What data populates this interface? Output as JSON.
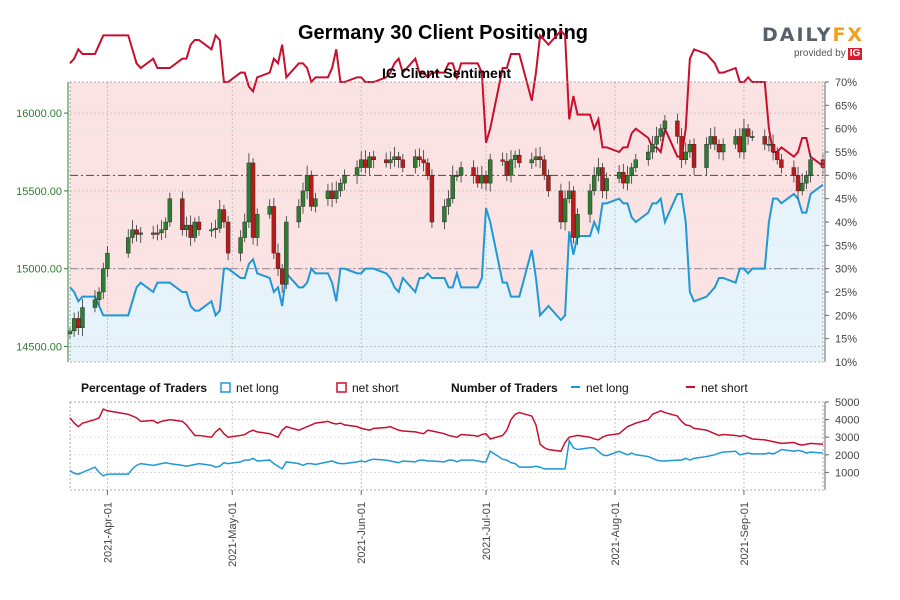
{
  "header": {
    "title": "Germany 30 Client Positioning",
    "logo": {
      "word_left": "DAILY",
      "word_right": "FX",
      "sub": "provided by",
      "badge": "IG"
    }
  },
  "colors": {
    "net_long": "#1f98d6",
    "net_short": "#c8102e",
    "short_fill": "#fbe3e4",
    "long_fill": "#e6f3fb",
    "candle_up": "#2e7d32",
    "candle_down": "#b71c1c",
    "price_axis": "#2e7d32",
    "grid": "#b8b8b8"
  },
  "chart_data": {
    "type": "line",
    "title": "IG Client Sentiment",
    "dates": [
      "2021-03-23",
      "2021-03-24",
      "2021-03-25",
      "2021-03-26",
      "2021-03-29",
      "2021-03-30",
      "2021-03-31",
      "2021-04-01",
      "2021-04-06",
      "2021-04-07",
      "2021-04-08",
      "2021-04-09",
      "2021-04-12",
      "2021-04-13",
      "2021-04-14",
      "2021-04-15",
      "2021-04-16",
      "2021-04-19",
      "2021-04-20",
      "2021-04-21",
      "2021-04-22",
      "2021-04-23",
      "2021-04-26",
      "2021-04-27",
      "2021-04-28",
      "2021-04-29",
      "2021-04-30",
      "2021-05-03",
      "2021-05-04",
      "2021-05-05",
      "2021-05-06",
      "2021-05-07",
      "2021-05-10",
      "2021-05-11",
      "2021-05-12",
      "2021-05-13",
      "2021-05-14",
      "2021-05-17",
      "2021-05-18",
      "2021-05-19",
      "2021-05-20",
      "2021-05-21",
      "2021-05-24",
      "2021-05-25",
      "2021-05-26",
      "2021-05-27",
      "2021-05-28",
      "2021-05-31",
      "2021-06-01",
      "2021-06-02",
      "2021-06-03",
      "2021-06-04",
      "2021-06-07",
      "2021-06-08",
      "2021-06-09",
      "2021-06-10",
      "2021-06-11",
      "2021-06-14",
      "2021-06-15",
      "2021-06-16",
      "2021-06-17",
      "2021-06-18",
      "2021-06-21",
      "2021-06-22",
      "2021-06-23",
      "2021-06-24",
      "2021-06-25",
      "2021-06-28",
      "2021-06-29",
      "2021-06-30",
      "2021-07-01",
      "2021-07-02",
      "2021-07-05",
      "2021-07-06",
      "2021-07-07",
      "2021-07-08",
      "2021-07-09",
      "2021-07-12",
      "2021-07-13",
      "2021-07-14",
      "2021-07-15",
      "2021-07-16",
      "2021-07-19",
      "2021-07-20",
      "2021-07-21",
      "2021-07-22",
      "2021-07-23",
      "2021-07-26",
      "2021-07-27",
      "2021-07-28",
      "2021-07-29",
      "2021-07-30",
      "2021-08-02",
      "2021-08-03",
      "2021-08-04",
      "2021-08-05",
      "2021-08-06",
      "2021-08-09",
      "2021-08-10",
      "2021-08-11",
      "2021-08-12",
      "2021-08-13",
      "2021-08-16",
      "2021-08-17",
      "2021-08-18",
      "2021-08-19",
      "2021-08-20",
      "2021-08-23",
      "2021-08-24",
      "2021-08-25",
      "2021-08-26",
      "2021-08-27",
      "2021-08-30",
      "2021-08-31",
      "2021-09-01",
      "2021-09-02",
      "2021-09-03",
      "2021-09-06",
      "2021-09-07",
      "2021-09-08",
      "2021-09-09",
      "2021-09-10",
      "2021-09-13",
      "2021-09-14",
      "2021-09-15",
      "2021-09-16",
      "2021-09-17",
      "2021-09-20"
    ],
    "price": {
      "close": [
        14600,
        14680,
        14620,
        14750,
        14800,
        14850,
        15000,
        15100,
        15200,
        15250,
        15220,
        15230,
        15220,
        15230,
        15250,
        15300,
        15450,
        15250,
        15280,
        15200,
        15300,
        15250,
        15250,
        15260,
        15380,
        15300,
        15100,
        15200,
        15300,
        15680,
        15200,
        15350,
        15400,
        15100,
        15000,
        14900,
        15300,
        15400,
        15500,
        15600,
        15400,
        15450,
        15500,
        15450,
        15500,
        15550,
        15600,
        15650,
        15700,
        15650,
        15720,
        15700,
        15680,
        15700,
        15720,
        15700,
        15650,
        15720,
        15700,
        15680,
        15600,
        15300,
        15400,
        15450,
        15600,
        15600,
        15650,
        15600,
        15550,
        15600,
        15550,
        15700,
        15690,
        15600,
        15700,
        15730,
        15680,
        15700,
        15720,
        15700,
        15600,
        15500,
        15300,
        15450,
        15500,
        15200,
        15350,
        15500,
        15600,
        15650,
        15500,
        15580,
        15620,
        15550,
        15600,
        15650,
        15700,
        15750,
        15800,
        15850,
        15900,
        15950,
        15850,
        15700,
        15750,
        15800,
        15650,
        15800,
        15850,
        15800,
        15750,
        15800,
        15850,
        15750,
        15900,
        15850,
        15850,
        15800,
        15800,
        15750,
        15700,
        15650,
        15600,
        15500,
        15550,
        15600,
        15700,
        15650
      ],
      "ylim": [
        14400,
        16200
      ],
      "ticks": [
        14500,
        15000,
        15500,
        16000
      ],
      "tick_labels": [
        "14500.00",
        "15000.00",
        "15500.00",
        "16000.00"
      ]
    },
    "sentiment": {
      "ylim": [
        10,
        70
      ],
      "ticks": [
        15,
        20,
        25,
        30,
        35,
        40,
        45,
        50,
        55,
        60,
        65,
        70
      ],
      "tick_labels": [
        "15%",
        "20%",
        "25%",
        "30%",
        "35%",
        "40%",
        "45%",
        "50%",
        "55%",
        "60%",
        "65%",
        "70%"
      ],
      "reference_lines": [
        50,
        30
      ],
      "net_short_pct": [
        74,
        75,
        77,
        76,
        76,
        78,
        80,
        80,
        80,
        77,
        74,
        73,
        75,
        73,
        73,
        73,
        73,
        75,
        75,
        78,
        79,
        79,
        77,
        80,
        79,
        70,
        70,
        72,
        72,
        69,
        68,
        71,
        72,
        75,
        74,
        78,
        71,
        74,
        74,
        73,
        70,
        71,
        71,
        73,
        77,
        70,
        70,
        71,
        71,
        70,
        70,
        70,
        71,
        72,
        74,
        75,
        72,
        75,
        72,
        72,
        71,
        72,
        72,
        74,
        74,
        71,
        74,
        74,
        74,
        72,
        57,
        60,
        73,
        73,
        76,
        76,
        76,
        66,
        72,
        80,
        79,
        78,
        81,
        80,
        62,
        67,
        63,
        63,
        60,
        62,
        56,
        56,
        55,
        56,
        56,
        59,
        60,
        58,
        56,
        56,
        55,
        60,
        54,
        54,
        60,
        75,
        77,
        76,
        75,
        74,
        72,
        72,
        73,
        70,
        70,
        71,
        70,
        70,
        60,
        55,
        55,
        56,
        54,
        55,
        58,
        58,
        54,
        52
      ],
      "net_long_pct": [
        26,
        25,
        23,
        24,
        24,
        22,
        20,
        20,
        20,
        23,
        26,
        27,
        25,
        27,
        27,
        27,
        27,
        25,
        25,
        22,
        21,
        21,
        23,
        20,
        21,
        30,
        30,
        28,
        28,
        31,
        32,
        29,
        28,
        25,
        26,
        22,
        29,
        26,
        26,
        27,
        30,
        29,
        29,
        27,
        23,
        30,
        30,
        29,
        29,
        30,
        30,
        30,
        29,
        28,
        26,
        25,
        28,
        25,
        28,
        28,
        29,
        28,
        28,
        26,
        26,
        29,
        26,
        26,
        26,
        28,
        43,
        40,
        27,
        27,
        24,
        24,
        24,
        34,
        28,
        20,
        21,
        22,
        19,
        20,
        38,
        33,
        37,
        37,
        40,
        38,
        44,
        44,
        45,
        44,
        44,
        41,
        40,
        42,
        44,
        44,
        45,
        40,
        46,
        46,
        40,
        25,
        23,
        24,
        25,
        26,
        28,
        28,
        27,
        30,
        30,
        29,
        30,
        30,
        40,
        45,
        45,
        44,
        46,
        45,
        42,
        42,
        46,
        48
      ]
    },
    "traders": {
      "title": "Number of Traders",
      "ylim": [
        0,
        5000
      ],
      "ticks": [
        1000,
        2000,
        3000,
        4000,
        5000
      ],
      "tick_labels": [
        "1000",
        "2000",
        "3000",
        "4000",
        "5000"
      ],
      "net_long": [
        1100,
        950,
        900,
        1000,
        1300,
        1000,
        800,
        900,
        900,
        1200,
        1400,
        1500,
        1400,
        1450,
        1500,
        1550,
        1500,
        1400,
        1350,
        1400,
        1450,
        1500,
        1400,
        1300,
        1350,
        1550,
        1500,
        1600,
        1700,
        1700,
        1800,
        1650,
        1700,
        1500,
        1350,
        1200,
        1600,
        1500,
        1400,
        1500,
        1500,
        1450,
        1600,
        1650,
        1550,
        1500,
        1500,
        1600,
        1650,
        1600,
        1700,
        1750,
        1700,
        1650,
        1600,
        1550,
        1650,
        1600,
        1700,
        1700,
        1650,
        1650,
        1600,
        1700,
        1700,
        1600,
        1700,
        1700,
        1650,
        1600,
        1600,
        2200,
        1750,
        1700,
        1550,
        1500,
        1300,
        1300,
        1350,
        1300,
        1200,
        1200,
        1200,
        1200,
        2800,
        2400,
        2300,
        2400,
        2400,
        2200,
        2000,
        1950,
        2200,
        2100,
        2000,
        2100,
        2000,
        1900,
        1800,
        1700,
        1650,
        1650,
        1700,
        1700,
        1800,
        1700,
        1800,
        1900,
        1950,
        2000,
        2100,
        2150,
        2200,
        2000,
        2050,
        2100,
        2050,
        2050,
        2100,
        2050,
        2150,
        2300,
        2200,
        2250,
        2200,
        2100,
        2150,
        2100
      ],
      "net_short": [
        4100,
        3800,
        3600,
        3800,
        4000,
        4100,
        4600,
        4500,
        4300,
        4200,
        4100,
        3900,
        3950,
        3800,
        3900,
        3950,
        4000,
        3900,
        3700,
        3400,
        3100,
        3100,
        3000,
        3300,
        3500,
        3200,
        3000,
        3100,
        3150,
        3300,
        3400,
        3300,
        3200,
        3100,
        3000,
        3400,
        3600,
        3400,
        3500,
        3600,
        3700,
        3800,
        3900,
        3800,
        3750,
        3800,
        3700,
        3600,
        3500,
        3450,
        3400,
        3500,
        3550,
        3600,
        3500,
        3400,
        3350,
        3300,
        3250,
        3200,
        3400,
        3350,
        3200,
        3100,
        3050,
        3000,
        3150,
        3100,
        3050,
        3150,
        3200,
        2900,
        3100,
        3400,
        4000,
        4300,
        4400,
        4200,
        3700,
        2600,
        2400,
        2300,
        2200,
        2700,
        3000,
        3050,
        3100,
        3000,
        2900,
        2850,
        3000,
        3100,
        3200,
        3400,
        3600,
        3700,
        3800,
        4000,
        4300,
        4400,
        4500,
        4400,
        4200,
        3900,
        3700,
        3650,
        3500,
        3400,
        3300,
        3200,
        3100,
        3150,
        3100,
        3050,
        3100,
        3000,
        2900,
        2850,
        2800,
        2750,
        2700,
        2650,
        2700,
        2600,
        2550,
        2600,
        2650,
        2600
      ]
    },
    "x_tick_labels": [
      "2021-Apr-01",
      "2021-May-01",
      "2021-Jun-01",
      "2021-Jul-01",
      "2021-Aug-01",
      "2021-Sep-01"
    ],
    "x_tick_dates": [
      "2021-04-01",
      "2021-05-01",
      "2021-06-01",
      "2021-07-01",
      "2021-08-01",
      "2021-09-01"
    ],
    "legend": {
      "pct_title": "Percentage of Traders",
      "long_label": "net long",
      "short_label": "net short",
      "num_title": "Number of Traders",
      "num_long_label": "net long",
      "num_short_label": "net short"
    }
  }
}
